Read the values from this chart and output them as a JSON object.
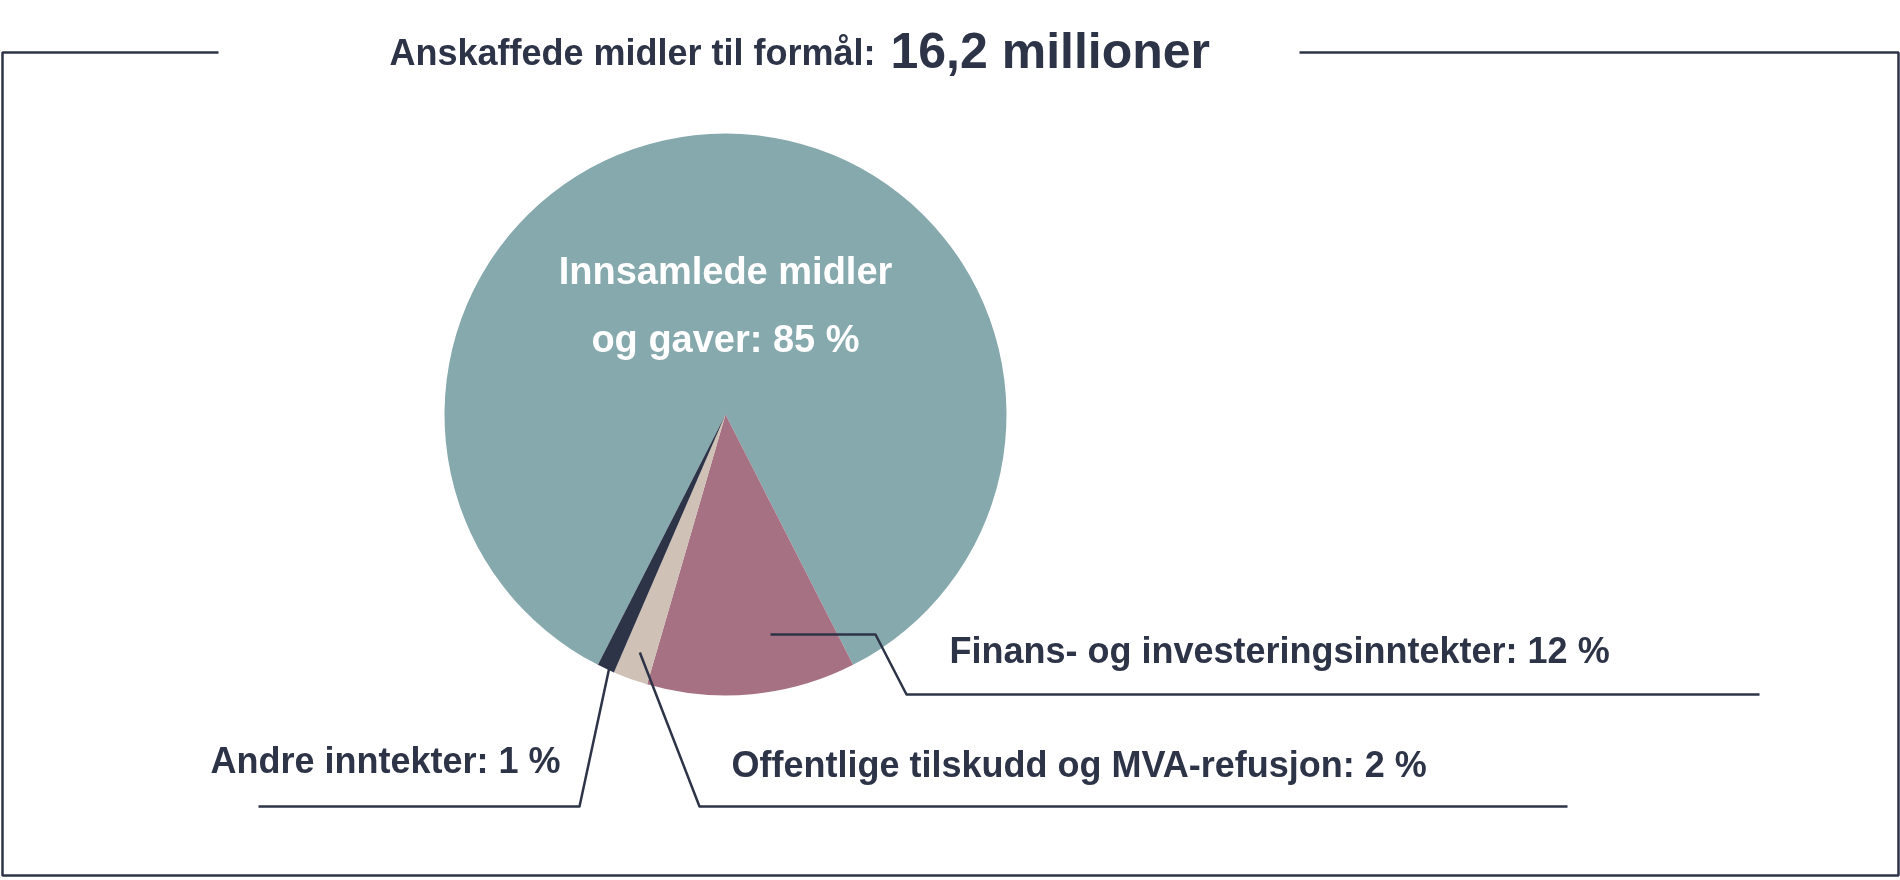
{
  "chart_data": {
    "type": "pie",
    "title": "Anskaffede midler til formål:",
    "subtitle": "16,2 millioner",
    "categories": [
      "Innsamlede midler og gaver",
      "Finans- og investeringsinntekter",
      "Offentlige tilskudd og MVA-refusjon",
      "Andre inntekter"
    ],
    "values": [
      85,
      12,
      2,
      1
    ],
    "colors": [
      "#86a9ad",
      "#a67183",
      "#cfc1b5",
      "#2e3447"
    ],
    "value_labels": [
      "85 %",
      "12 %",
      "2 %",
      "1 %"
    ]
  }
}
